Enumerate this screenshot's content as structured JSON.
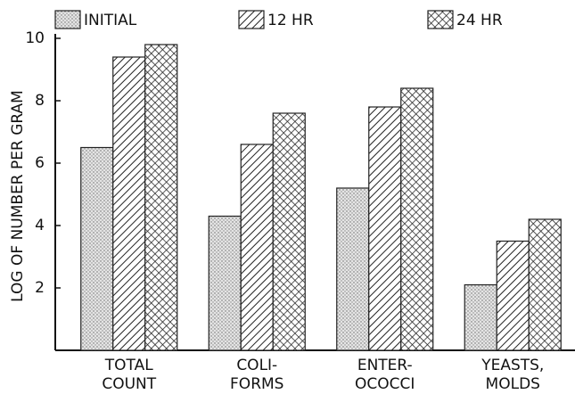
{
  "chart_data": {
    "type": "bar",
    "y_label": "LOG OF NUMBER PER GRAM",
    "categories": [
      [
        "TOTAL",
        "COUNT"
      ],
      [
        "COLI-",
        "FORMS"
      ],
      [
        "ENTER-",
        "OCOCCI"
      ],
      [
        "YEASTS,",
        "MOLDS"
      ]
    ],
    "series": [
      {
        "name": "INITIAL",
        "color": "#222",
        "pattern": "dots",
        "values": [
          6.5,
          4.3,
          5.2,
          2.1
        ]
      },
      {
        "name": "12 HR",
        "color": "#222",
        "pattern": "hatch",
        "values": [
          9.4,
          6.6,
          7.8,
          3.5
        ]
      },
      {
        "name": "24 HR",
        "color": "#222",
        "pattern": "crosshatch",
        "values": [
          9.8,
          7.6,
          8.4,
          4.2
        ]
      }
    ],
    "ylim": [
      0,
      10
    ],
    "yticks": [
      2,
      4,
      6,
      8,
      10
    ],
    "legend": "top",
    "grid": false
  }
}
